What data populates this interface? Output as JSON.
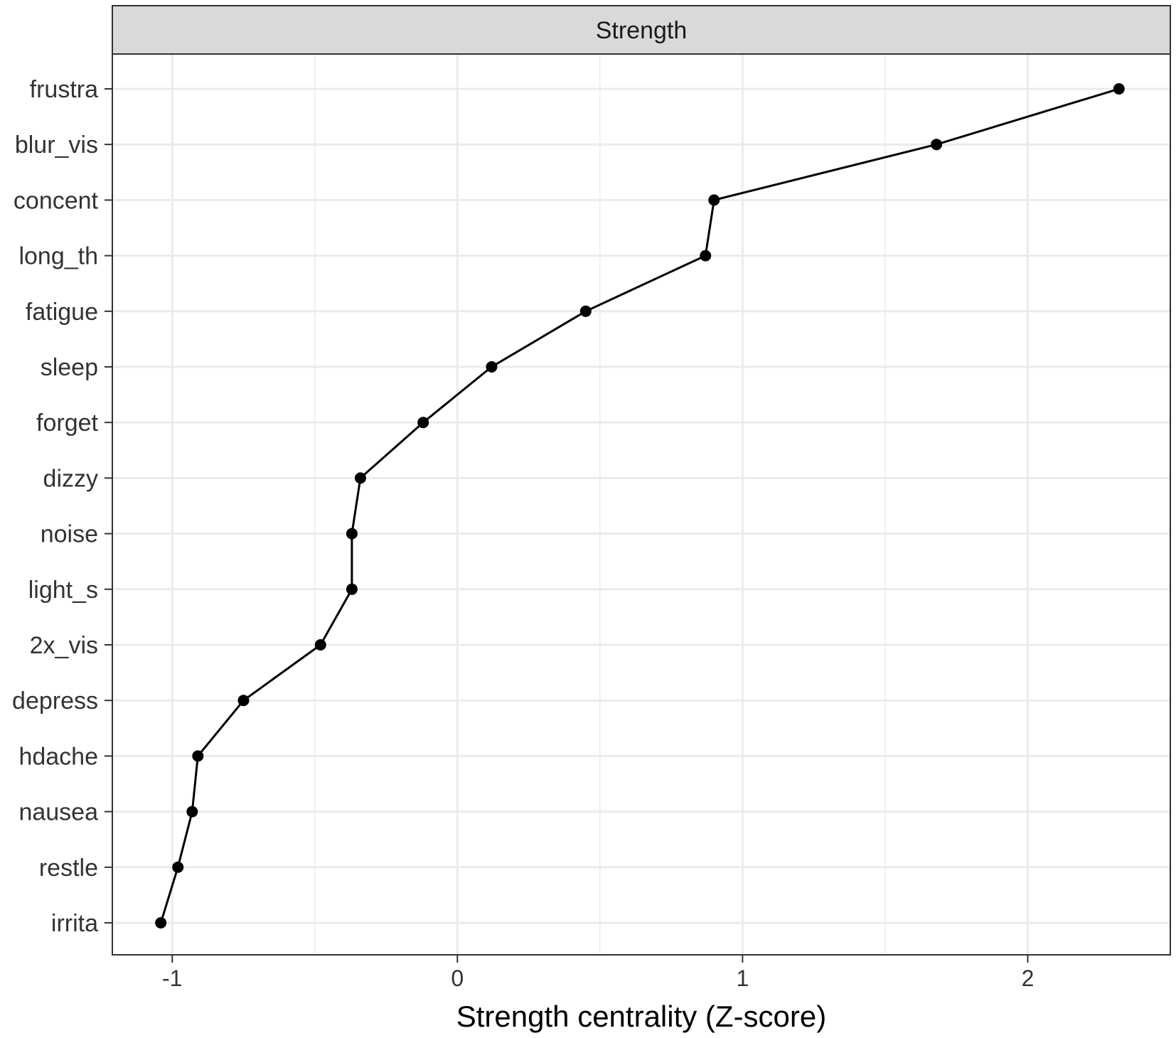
{
  "chart_data": {
    "type": "line",
    "facet_title": "Strength",
    "xlabel": "Strength centrality (Z-score)",
    "ylabel": "",
    "xlim": [
      -1.21,
      2.5
    ],
    "x_ticks": [
      -1,
      0,
      1,
      2
    ],
    "x_tick_labels": [
      "-1",
      "0",
      "1",
      "2"
    ],
    "x_minor_ticks": [
      -0.5,
      0.5,
      1.5
    ],
    "categories": [
      "frustra",
      "blur_vis",
      "concent",
      "long_th",
      "fatigue",
      "sleep",
      "forget",
      "dizzy",
      "noise",
      "light_s",
      "2x_vis",
      "depress",
      "hdache",
      "nausea",
      "restle",
      "irrita"
    ],
    "values": [
      2.32,
      1.68,
      0.9,
      0.87,
      0.45,
      0.12,
      -0.12,
      -0.34,
      -0.37,
      -0.37,
      -0.48,
      -0.75,
      -0.91,
      -0.93,
      -0.98,
      -1.04
    ],
    "markers": true,
    "grid": true,
    "legend": "none",
    "colors": {
      "line": "#000000",
      "point": "#000000",
      "grid": "#ebebeb",
      "strip_fill": "#d9d9d9",
      "panel_border": "#333333",
      "tick_text": "#333333"
    }
  }
}
